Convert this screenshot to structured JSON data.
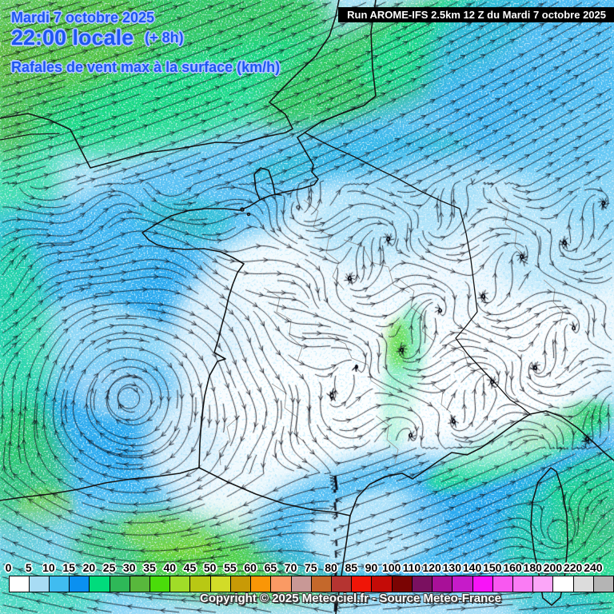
{
  "header": {
    "date_line": "Mardi 7 octobre 2025",
    "time_line": "22:00 locale",
    "offset_label": "(+ 8h)",
    "subtitle": "Rafales de vent max à la surface (km/h)",
    "text_color": "#1d55f2"
  },
  "banner": {
    "text": "Run AROME-IFS 2.5km 12 Z du Mardi 7 octobre 2025",
    "bg": "#000000",
    "fg": "#ffffff"
  },
  "legend": {
    "unit": "km/h",
    "values": [
      0,
      5,
      10,
      15,
      20,
      25,
      30,
      35,
      40,
      45,
      50,
      55,
      60,
      65,
      70,
      75,
      80,
      85,
      90,
      100,
      110,
      120,
      130,
      140,
      150,
      160,
      180,
      200,
      220,
      240
    ],
    "colors": [
      "#FFFFFF",
      "#A8DCF4",
      "#40BCF0",
      "#0A90F0",
      "#00DC7C",
      "#2EB858",
      "#58B83C",
      "#4ADC0A",
      "#A0DC28",
      "#B8C814",
      "#D2DC28",
      "#C89A06",
      "#FA9606",
      "#FA9A64",
      "#C89896",
      "#C4682B",
      "#B53431",
      "#F01507",
      "#C40B07",
      "#7A0403",
      "#7A1060",
      "#A81098",
      "#C61BC9",
      "#F813F8",
      "#F858F0",
      "#FA7CF4",
      "#FBA6F8",
      "#FFFFFF",
      "#DCDCDC",
      "#B4B4B4"
    ]
  },
  "footer": {
    "copyright": "Copyright © 2025 Meteociel.fr - Source Meteo-France"
  }
}
